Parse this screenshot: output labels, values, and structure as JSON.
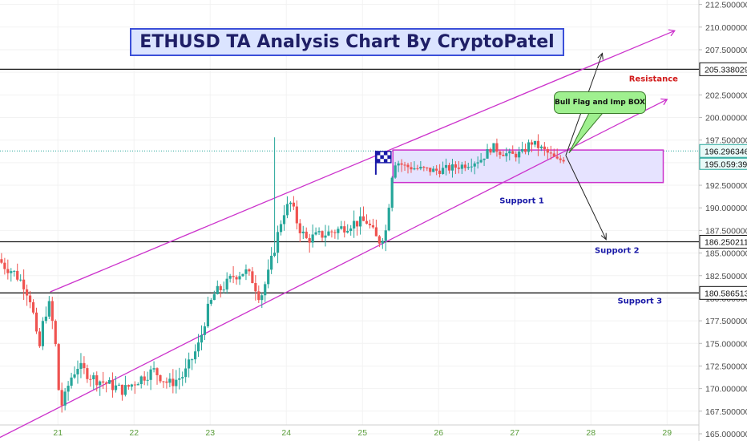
{
  "chart_data": {
    "type": "candlestick",
    "title": "ETHUSD TA Analysis Chart By CryptoPatel",
    "y_ticks": [
      "212.500000",
      "210.000000",
      "207.500000",
      "205.000000",
      "202.500000",
      "200.000000",
      "197.500000",
      "195.000000",
      "192.500000",
      "190.000000",
      "187.500000",
      "185.000000",
      "182.500000",
      "180.000000",
      "177.500000",
      "175.000000",
      "172.500000",
      "170.000000",
      "167.500000",
      "165.000000"
    ],
    "y_tick_values": [
      212.5,
      210,
      207.5,
      205,
      202.5,
      200,
      197.5,
      195,
      192.5,
      190,
      187.5,
      185,
      182.5,
      180,
      177.5,
      175,
      172.5,
      170,
      167.5,
      165
    ],
    "ylim": [
      164.2,
      213.0
    ],
    "x_ticks": [
      "21",
      "22",
      "23",
      "24",
      "25",
      "26",
      "27",
      "28",
      "29"
    ],
    "x_tick_days": [
      21,
      22,
      23,
      24,
      25,
      26,
      27,
      28,
      29
    ],
    "xlim": [
      20.24,
      30.05
    ],
    "horizontal_levels": [
      {
        "price": 205.338029,
        "label": "205.338029",
        "style": "dark"
      },
      {
        "price": 186.250211,
        "label": "186.250211",
        "style": "dark"
      },
      {
        "price": 180.586513,
        "label": "180.586513",
        "style": "dark"
      }
    ],
    "current_price": {
      "price": 196.296346,
      "label": "196.296346",
      "countdown": "59:39",
      "partial_label": "195.0"
    },
    "channel_upper": [
      [
        20.9,
        180.7
      ],
      [
        29.1,
        209.6
      ]
    ],
    "channel_lower": [
      [
        20.24,
        164.6
      ],
      [
        29.0,
        202.0
      ]
    ],
    "box": {
      "x0": 25.4,
      "x1": 28.95,
      "y_top": 196.4,
      "y_bottom": 192.8
    },
    "arrows": [
      {
        "from": [
          27.67,
          195.8
        ],
        "to": [
          28.15,
          207.1
        ]
      },
      {
        "from": [
          27.67,
          195.8
        ],
        "to": [
          28.2,
          186.5
        ]
      }
    ],
    "flag_at": [
      25.27,
      194.2
    ],
    "annotations": {
      "resistance": "Resistance",
      "support1": "Support 1",
      "support2": "Support 2",
      "support3": "Support 3",
      "callout": "Bull Flag and Imp BOX"
    },
    "colors": {
      "up": "#26a69a",
      "down": "#ef5350",
      "channel": "#cc33cc",
      "box_fill": "#e6e3ff",
      "box_border": "#cc33cc",
      "level": "#1a1a1a"
    },
    "anchors": [
      [
        20.24,
        184.5
      ],
      [
        20.35,
        183.5
      ],
      [
        20.45,
        183
      ],
      [
        20.6,
        181.5
      ],
      [
        20.7,
        179.5
      ],
      [
        20.75,
        176
      ],
      [
        20.8,
        174.5
      ],
      [
        20.85,
        177.5
      ],
      [
        20.92,
        179.5
      ],
      [
        21.0,
        176
      ],
      [
        21.05,
        170
      ],
      [
        21.1,
        168
      ],
      [
        21.2,
        171
      ],
      [
        21.3,
        172.5
      ],
      [
        21.5,
        171.2
      ],
      [
        21.7,
        170.5
      ],
      [
        21.9,
        169.8
      ],
      [
        22.1,
        171
      ],
      [
        22.3,
        172
      ],
      [
        22.5,
        170.5
      ],
      [
        22.7,
        171.5
      ],
      [
        22.9,
        175
      ],
      [
        23.0,
        178.5
      ],
      [
        23.1,
        180.5
      ],
      [
        23.25,
        181.5
      ],
      [
        23.35,
        182.5
      ],
      [
        23.5,
        183
      ],
      [
        23.6,
        182
      ],
      [
        23.7,
        180
      ],
      [
        23.8,
        182.5
      ],
      [
        23.9,
        186
      ],
      [
        24.0,
        189.5
      ],
      [
        24.1,
        190.5
      ],
      [
        24.2,
        188
      ],
      [
        24.3,
        186.5
      ],
      [
        24.5,
        187
      ],
      [
        24.7,
        187.5
      ],
      [
        24.9,
        188.3
      ],
      [
        25.1,
        188.5
      ],
      [
        25.25,
        186.2
      ],
      [
        25.35,
        187.5
      ],
      [
        25.45,
        195.3
      ],
      [
        25.6,
        194.6
      ],
      [
        25.8,
        194.3
      ],
      [
        26.0,
        194.1
      ],
      [
        26.2,
        194.4
      ],
      [
        26.4,
        194.8
      ],
      [
        26.6,
        195.4
      ],
      [
        26.75,
        196.8
      ],
      [
        26.85,
        196.2
      ],
      [
        27.0,
        195.8
      ],
      [
        27.15,
        196.1
      ],
      [
        27.25,
        197.3
      ],
      [
        27.4,
        196.5
      ],
      [
        27.5,
        195.9
      ],
      [
        27.6,
        195.2
      ],
      [
        27.7,
        195.5
      ]
    ],
    "spikes": [
      {
        "day": 23.84,
        "high": 197.8,
        "low": 182.0
      }
    ]
  }
}
